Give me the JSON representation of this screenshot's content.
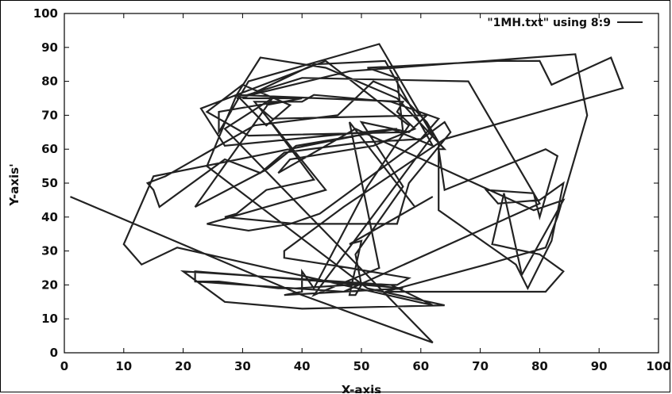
{
  "chart_data": {
    "type": "line",
    "title": "",
    "xlabel": "X-axis",
    "ylabel": "Y-axis'",
    "xlim": [
      0,
      100
    ],
    "ylim": [
      0,
      100
    ],
    "xticks": [
      0,
      10,
      20,
      30,
      40,
      50,
      60,
      70,
      80,
      90,
      100
    ],
    "yticks": [
      0,
      10,
      20,
      30,
      40,
      50,
      60,
      70,
      80,
      90,
      100
    ],
    "grid": false,
    "legend_position": "top-right",
    "line_color": "#222222",
    "series": [
      {
        "name": "\"1MH.txt\" using 8:9",
        "points": [
          [
            1,
            46
          ],
          [
            40,
            17
          ],
          [
            62,
            3
          ],
          [
            27,
            66
          ],
          [
            35,
            75
          ],
          [
            22,
            43
          ],
          [
            34,
            54
          ],
          [
            39,
            61
          ],
          [
            56,
            66
          ],
          [
            27,
            61
          ],
          [
            23,
            72
          ],
          [
            44,
            86
          ],
          [
            58,
            67
          ],
          [
            51,
            49
          ],
          [
            42,
            19
          ],
          [
            40,
            24
          ],
          [
            40,
            18
          ],
          [
            37,
            17
          ],
          [
            57,
            19
          ],
          [
            44,
            21
          ],
          [
            22,
            24
          ],
          [
            22,
            21
          ],
          [
            47,
            18
          ],
          [
            80,
            44
          ],
          [
            68,
            80
          ],
          [
            40,
            81
          ],
          [
            29,
            75
          ],
          [
            48,
            83
          ],
          [
            86,
            88
          ],
          [
            88,
            70
          ],
          [
            83,
            40
          ],
          [
            81,
            31
          ],
          [
            71,
            26
          ],
          [
            54,
            18
          ],
          [
            81,
            18
          ],
          [
            84,
            24
          ],
          [
            80,
            29
          ],
          [
            72,
            32
          ],
          [
            74,
            47
          ],
          [
            77,
            23
          ],
          [
            84,
            45
          ],
          [
            79,
            42
          ],
          [
            49,
            66
          ],
          [
            36,
            53
          ],
          [
            38,
            57
          ],
          [
            52,
            61
          ],
          [
            59,
            66
          ],
          [
            56,
            71
          ],
          [
            57,
            74
          ],
          [
            29,
            76
          ],
          [
            24,
            55
          ],
          [
            51,
            19
          ],
          [
            64,
            14
          ],
          [
            40,
            13
          ],
          [
            27,
            15
          ],
          [
            20,
            24
          ],
          [
            55,
            20
          ],
          [
            62,
            14
          ],
          [
            19,
            31
          ],
          [
            13,
            26
          ],
          [
            10,
            32
          ],
          [
            15,
            52
          ],
          [
            55,
            66
          ],
          [
            62,
            61
          ],
          [
            54,
            86
          ],
          [
            42,
            85
          ],
          [
            30,
            75
          ],
          [
            40,
            75
          ],
          [
            34,
            73
          ],
          [
            36,
            74
          ],
          [
            26,
            71
          ],
          [
            26,
            65
          ],
          [
            31,
            80
          ],
          [
            53,
            91
          ],
          [
            62,
            64
          ],
          [
            42,
            17
          ],
          [
            53,
            25
          ],
          [
            48,
            68
          ],
          [
            59,
            43
          ],
          [
            62,
            46
          ],
          [
            48,
            32
          ],
          [
            50,
            33
          ],
          [
            48,
            17
          ],
          [
            49,
            17
          ],
          [
            50,
            20
          ],
          [
            49,
            29
          ],
          [
            57,
            49
          ],
          [
            50,
            68
          ],
          [
            58,
            65
          ],
          [
            61,
            70
          ],
          [
            35,
            69
          ],
          [
            33,
            72
          ],
          [
            42,
            51
          ],
          [
            34,
            48
          ],
          [
            29,
            41
          ],
          [
            27,
            40
          ],
          [
            39,
            38
          ],
          [
            56,
            38
          ],
          [
            58,
            50
          ],
          [
            65,
            65
          ],
          [
            64,
            68
          ],
          [
            43,
            41
          ],
          [
            38,
            38
          ],
          [
            31,
            36
          ],
          [
            24,
            38
          ],
          [
            44,
            48
          ],
          [
            32,
            74
          ],
          [
            40,
            74
          ],
          [
            42,
            76
          ],
          [
            55,
            74
          ],
          [
            63,
            69
          ],
          [
            60,
            63
          ],
          [
            50,
            62
          ],
          [
            37,
            59
          ],
          [
            33,
            53
          ],
          [
            27,
            57
          ],
          [
            16,
            43
          ],
          [
            15,
            48
          ],
          [
            14,
            50
          ],
          [
            17,
            52
          ],
          [
            32,
            67
          ],
          [
            46,
            70
          ],
          [
            52,
            80
          ],
          [
            56,
            77
          ],
          [
            61,
            68
          ],
          [
            63,
            62
          ],
          [
            63,
            42
          ],
          [
            76,
            26
          ],
          [
            78,
            19
          ],
          [
            82,
            33
          ],
          [
            84,
            50
          ],
          [
            80,
            45
          ],
          [
            73,
            44
          ],
          [
            71,
            48
          ],
          [
            79,
            47
          ],
          [
            80,
            40
          ],
          [
            83,
            58
          ],
          [
            81,
            60
          ],
          [
            64,
            48
          ],
          [
            63,
            60
          ],
          [
            64,
            60
          ],
          [
            56,
            75
          ],
          [
            44,
            84
          ],
          [
            33,
            87
          ],
          [
            29,
            76
          ],
          [
            34,
            67
          ],
          [
            38,
            73
          ],
          [
            30,
            79
          ],
          [
            24,
            71
          ],
          [
            31,
            64
          ],
          [
            57,
            65
          ],
          [
            56,
            81
          ],
          [
            51,
            84
          ],
          [
            73,
            86
          ],
          [
            80,
            86
          ],
          [
            82,
            79
          ],
          [
            92,
            87
          ],
          [
            94,
            78
          ],
          [
            64,
            63
          ],
          [
            47,
            43
          ],
          [
            37,
            30
          ],
          [
            37,
            28
          ],
          [
            48,
            25
          ],
          [
            58,
            22
          ],
          [
            56,
            20
          ],
          [
            48,
            20
          ],
          [
            39,
            19
          ],
          [
            36,
            19
          ],
          [
            26,
            21
          ],
          [
            22,
            21
          ]
        ]
      }
    ]
  }
}
